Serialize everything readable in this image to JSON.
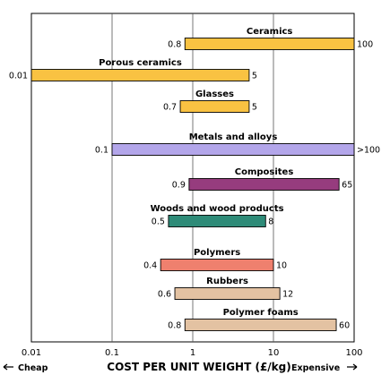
{
  "chart_data": {
    "type": "bar",
    "orientation": "horizontal-range",
    "xscale": "log",
    "xlim": [
      0.01,
      100
    ],
    "grid": true,
    "x_ticks": [
      "0.01",
      "0.1",
      "1",
      "10",
      "100"
    ],
    "xlabel": "COST PER UNIT WEIGHT (£/kg)",
    "xlabel_left": "Cheap",
    "xlabel_right": "Expensive",
    "bars": [
      {
        "name": "Ceramics",
        "low": 0.8,
        "high": 100,
        "low_label": "0.8",
        "high_label": "100",
        "color": "#f9c242"
      },
      {
        "name": "Porous ceramics",
        "low": 0.01,
        "high": 5,
        "low_label": "0.01",
        "high_label": "5",
        "color": "#f9c242"
      },
      {
        "name": "Glasses",
        "low": 0.7,
        "high": 5,
        "low_label": "0.7",
        "high_label": "5",
        "color": "#f9c242"
      },
      {
        "name": "Metals and alloys",
        "low": 0.1,
        "high": 100,
        "low_label": "0.1",
        "high_label": ">100",
        "color": "#b3a6ea"
      },
      {
        "name": "Composites",
        "low": 0.9,
        "high": 65,
        "low_label": "0.9",
        "high_label": "65",
        "color": "#963c7e"
      },
      {
        "name": "Woods and wood products",
        "low": 0.5,
        "high": 8,
        "low_label": "0.5",
        "high_label": "8",
        "color": "#2e8b78"
      },
      {
        "name": "Polymers",
        "low": 0.4,
        "high": 10,
        "low_label": "0.4",
        "high_label": "10",
        "color": "#ef806e"
      },
      {
        "name": "Rubbers",
        "low": 0.6,
        "high": 12,
        "low_label": "0.6",
        "high_label": "12",
        "color": "#e3c2a2"
      },
      {
        "name": "Polymer foams",
        "low": 0.8,
        "high": 60,
        "low_label": "0.8",
        "high_label": "60",
        "color": "#e3c2a2"
      }
    ]
  }
}
